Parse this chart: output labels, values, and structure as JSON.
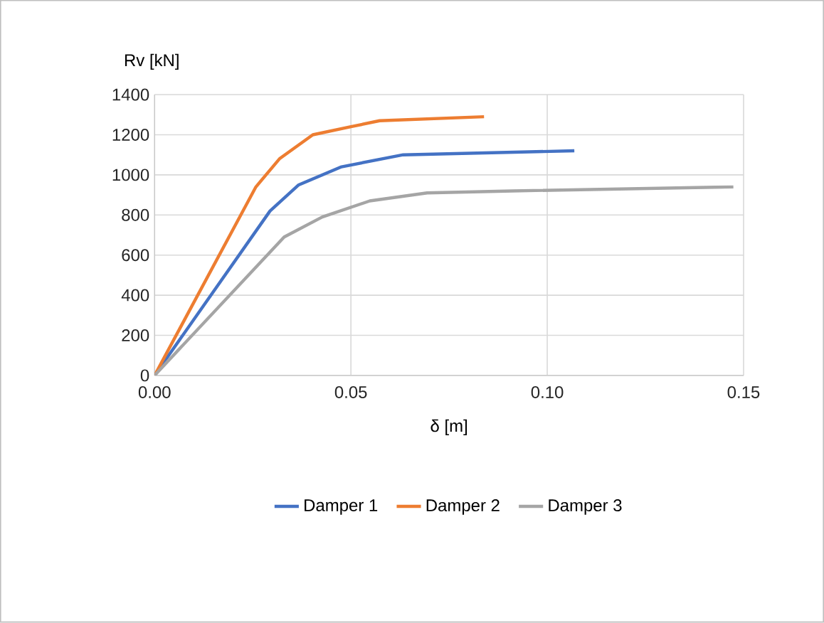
{
  "chart_data": {
    "type": "line",
    "xlabel": "δ [m]",
    "ylabel": "Rv [kN]",
    "xlim": [
      0,
      0.15
    ],
    "ylim": [
      0,
      1400
    ],
    "xticks": [
      {
        "value": 0,
        "label": "0.00"
      },
      {
        "value": 0.05,
        "label": "0.05"
      },
      {
        "value": 0.1,
        "label": "0.10"
      },
      {
        "value": 0.15,
        "label": "0.15"
      }
    ],
    "yticks": [
      0,
      200,
      400,
      600,
      800,
      1000,
      1200,
      1400
    ],
    "grid": true,
    "legend": "bottom",
    "series": [
      {
        "name": "Damper 1",
        "color": "#4472c4",
        "x": [
          0,
          0.0294,
          0.0367,
          0.0476,
          0.0633,
          0.1069
        ],
        "values": [
          0,
          820,
          950,
          1040,
          1100,
          1120
        ]
      },
      {
        "name": "Damper 2",
        "color": "#ed7d31",
        "x": [
          0,
          0.0258,
          0.0318,
          0.0403,
          0.05,
          0.0573,
          0.0839
        ],
        "values": [
          0,
          940,
          1080,
          1200,
          1240,
          1270,
          1290
        ]
      },
      {
        "name": "Damper 3",
        "color": "#a5a5a5",
        "x": [
          0,
          0.033,
          0.0427,
          0.0548,
          0.0694,
          0.0911,
          0.1474
        ],
        "values": [
          0,
          690,
          790,
          870,
          910,
          920,
          940
        ]
      }
    ]
  }
}
